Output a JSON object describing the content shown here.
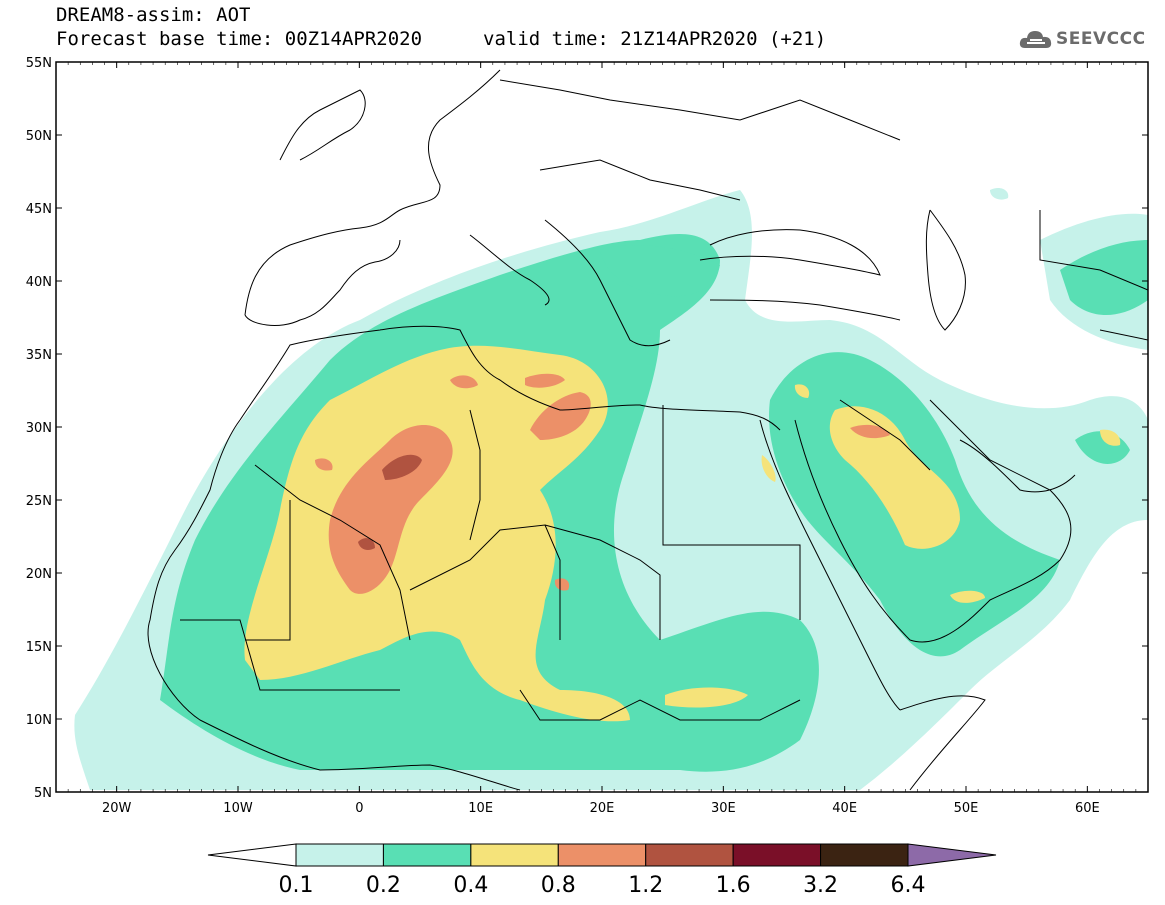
{
  "header": {
    "title": "DREAM8-assim: AOT",
    "base_time": "Forecast base time: 00Z14APR2020",
    "valid_time": "valid time: 21Z14APR2020 (+21)",
    "logo_text": "SEEVCCC",
    "logo_icon": "cloud-icon"
  },
  "map": {
    "lon_range": [
      -25,
      65
    ],
    "lat_range": [
      5,
      55
    ],
    "lat_labels": [
      "55N",
      "50N",
      "45N",
      "40N",
      "35N",
      "30N",
      "25N",
      "20N",
      "15N",
      "10N",
      "5N"
    ],
    "lon_labels": [
      "20W",
      "10W",
      "0",
      "10E",
      "20E",
      "30E",
      "40E",
      "50E",
      "60E"
    ],
    "frame_color": "#000000"
  },
  "colorbar": {
    "levels": [
      "0.1",
      "0.2",
      "0.4",
      "0.8",
      "1.2",
      "1.6",
      "3.2",
      "6.4"
    ],
    "colors": [
      "#c6f2ea",
      "#59dfb4",
      "#f5e37a",
      "#ec9068",
      "#b05340",
      "#7a0f28",
      "#3b2312",
      "#8d6aa8"
    ],
    "under_color": "#ffffff"
  }
}
